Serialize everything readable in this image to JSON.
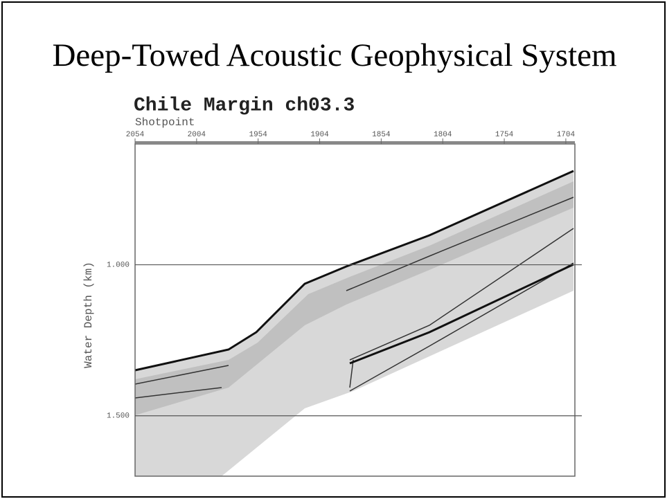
{
  "slide_title": "Deep-Towed Acoustic Geophysical System",
  "chart_data": {
    "type": "seismic-profile",
    "title": "Chile Margin ch03.3",
    "x_label": "Shotpoint",
    "y_label": "Water Depth (km)",
    "xlim": [
      2054,
      1691
    ],
    "xticks": [
      2054,
      2004,
      1954,
      1904,
      1854,
      1804,
      1754,
      1704
    ],
    "ylim": [
      0.6,
      1.7
    ],
    "yticks": [
      {
        "value": 1,
        "label": "1.000"
      },
      {
        "value": 1.5,
        "label": "1.500"
      }
    ],
    "grid": true
  }
}
